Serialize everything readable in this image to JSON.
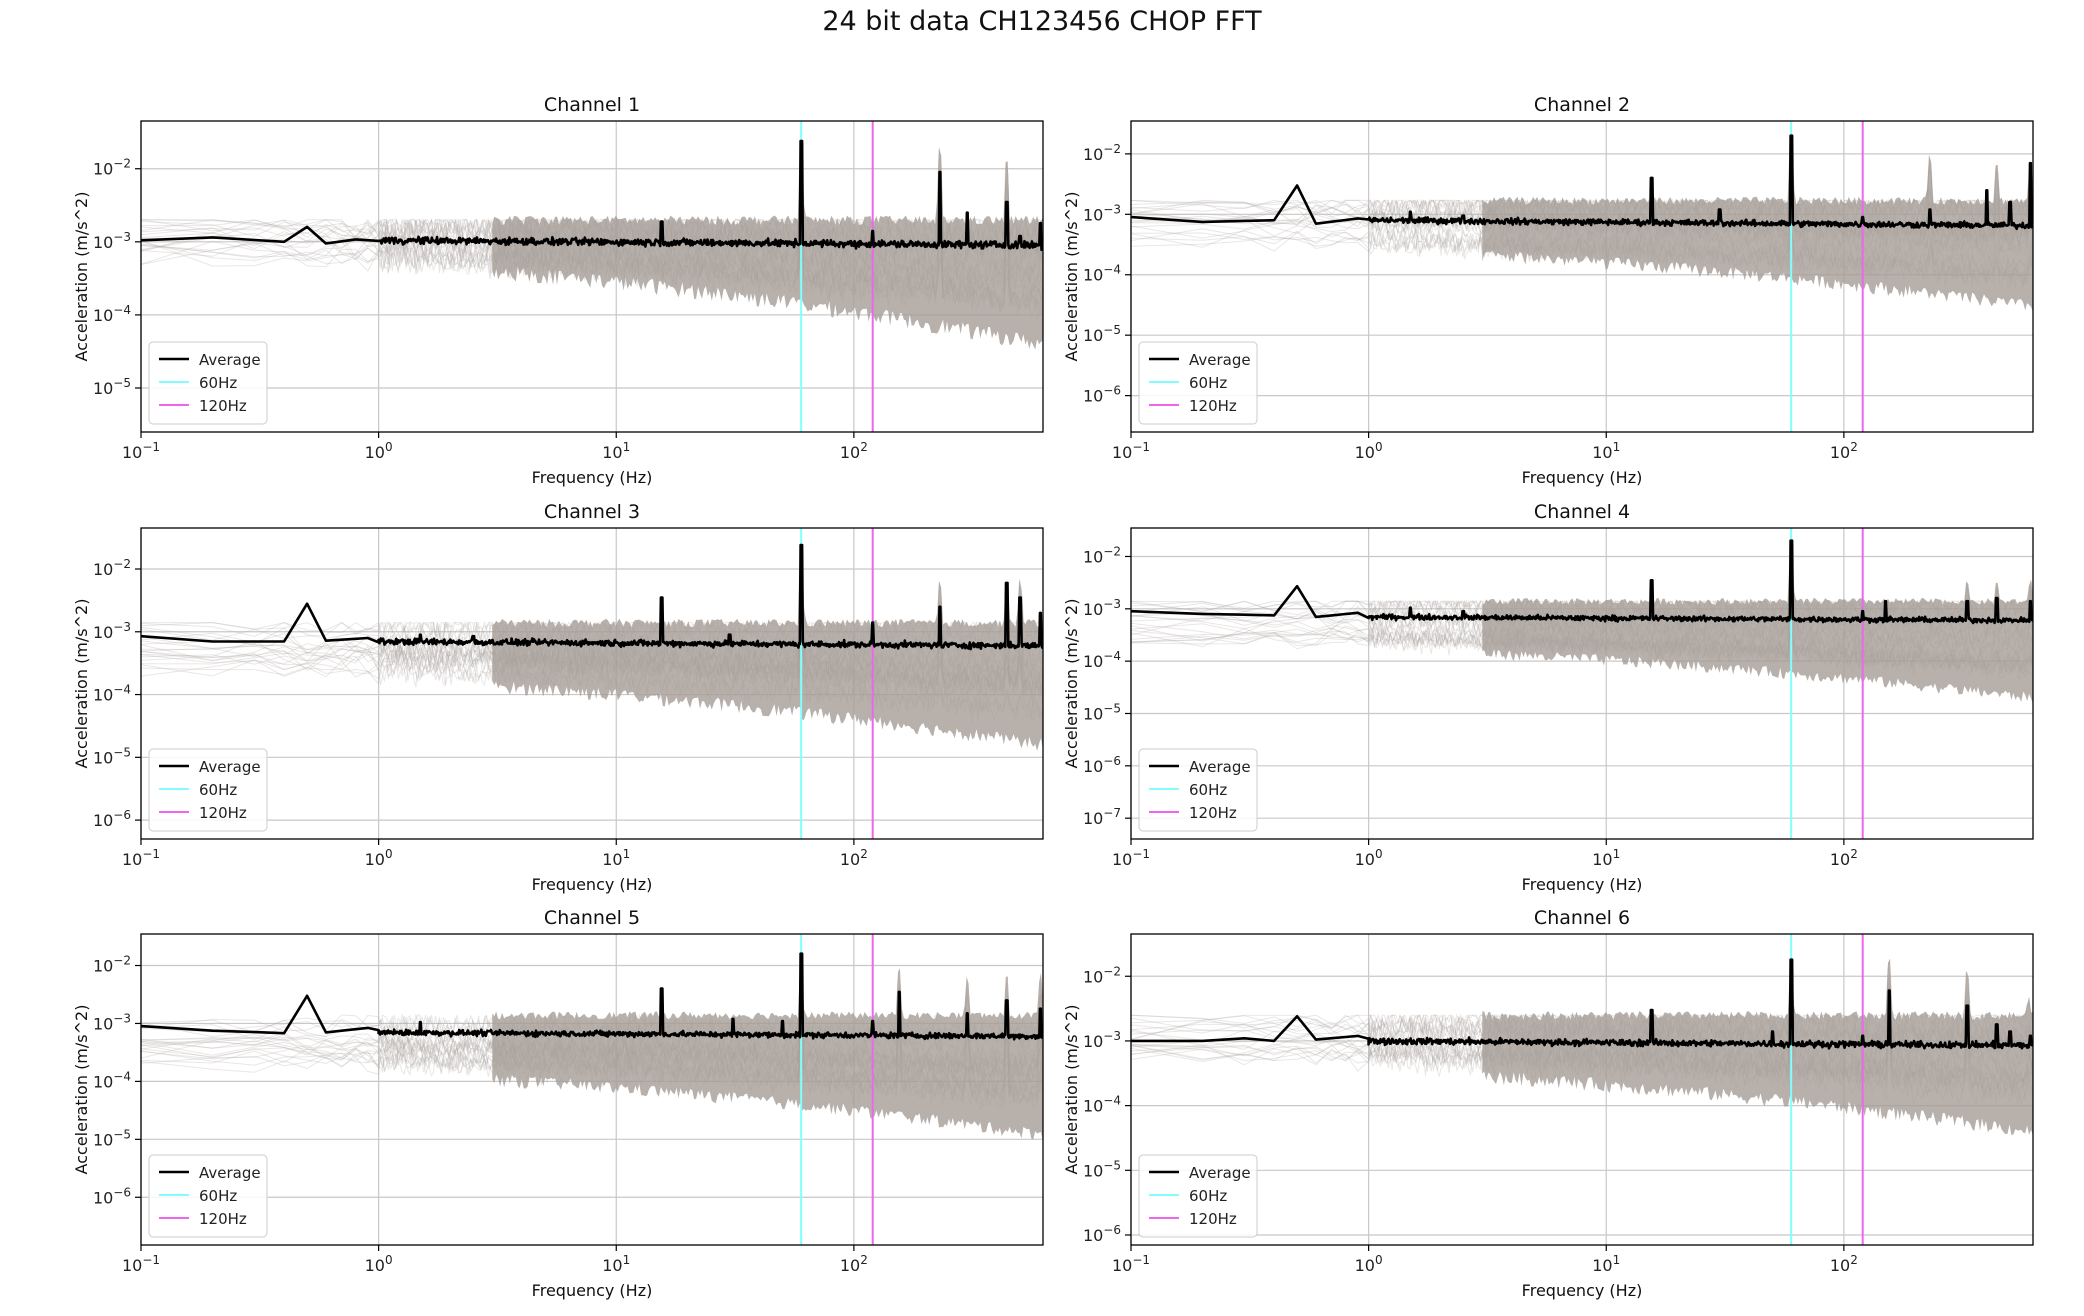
{
  "page": {
    "title": "24 bit data CH123456 CHOP FFT",
    "colors": {
      "average": "#000000",
      "band": "#a59c96",
      "band_faint": "#b0aaa6",
      "ref_60hz": "#7fffff",
      "ref_120hz": "#ee66ee",
      "grid": "#c8c8c8"
    }
  },
  "chart_data": [
    {
      "type": "line",
      "title": "Channel 1",
      "xlabel": "Frequency (Hz)",
      "ylabel": "Acceleration (m/s^2)",
      "xscale": "log",
      "yscale": "log",
      "xlim": [
        0.1,
        625
      ],
      "ylim": [
        2.5e-06,
        0.045
      ],
      "xticks": [
        "10^-1",
        "10^0",
        "10^1",
        "10^2"
      ],
      "yticks": [
        "10^-5",
        "10^-4",
        "10^-3",
        "10^-2"
      ],
      "grid": true,
      "legend_position": "lower-left",
      "legend": [
        "Average",
        "60Hz",
        "120Hz"
      ],
      "reference_lines": [
        {
          "name": "60Hz",
          "x": 60
        },
        {
          "name": "120Hz",
          "x": 120
        }
      ],
      "series": [
        {
          "name": "Average",
          "base": 0.00105,
          "dip": 0.0009,
          "points": [
            [
              0.1,
              0.00105
            ],
            [
              0.2,
              0.00115
            ],
            [
              0.4,
              0.001
            ],
            [
              0.5,
              0.0016
            ],
            [
              0.6,
              0.00095
            ],
            [
              0.8,
              0.00108
            ],
            [
              1.0,
              0.00103
            ],
            [
              15.5,
              0.0019
            ],
            [
              60,
              0.024
            ],
            [
              120,
              0.0014
            ],
            [
              230,
              0.009
            ],
            [
              300,
              0.0025
            ],
            [
              440,
              0.0035
            ],
            [
              500,
              0.0012
            ],
            [
              610,
              0.0018
            ]
          ]
        }
      ],
      "band": {
        "lower_at_start": 0.0003,
        "lower_at_end": 2e-05,
        "upper": 0.002,
        "peaks": [
          [
            60,
            0.03
          ],
          [
            230,
            0.025
          ],
          [
            440,
            0.018
          ]
        ]
      }
    },
    {
      "type": "line",
      "title": "Channel 2",
      "xlabel": "Frequency (Hz)",
      "ylabel": "Acceleration (m/s^2)",
      "xscale": "log",
      "yscale": "log",
      "xlim": [
        0.1,
        625
      ],
      "ylim": [
        2.5e-07,
        0.035
      ],
      "xticks": [
        "10^-1",
        "10^0",
        "10^1",
        "10^2"
      ],
      "yticks": [
        "10^-6",
        "10^-5",
        "10^-4",
        "10^-3",
        "10^-2"
      ],
      "grid": true,
      "legend_position": "lower-left",
      "legend": [
        "Average",
        "60Hz",
        "120Hz"
      ],
      "reference_lines": [
        {
          "name": "60Hz",
          "x": 60
        },
        {
          "name": "120Hz",
          "x": 120
        }
      ],
      "series": [
        {
          "name": "Average",
          "base": 0.0008,
          "dip": 0.00065,
          "points": [
            [
              0.1,
              0.0009
            ],
            [
              0.2,
              0.00075
            ],
            [
              0.4,
              0.0008
            ],
            [
              0.5,
              0.003
            ],
            [
              0.6,
              0.0007
            ],
            [
              1.5,
              0.0011
            ],
            [
              2.5,
              0.00095
            ],
            [
              15.5,
              0.004
            ],
            [
              30,
              0.0012
            ],
            [
              60,
              0.02
            ],
            [
              120,
              0.0009
            ],
            [
              230,
              0.0012
            ],
            [
              400,
              0.0025
            ],
            [
              500,
              0.0016
            ],
            [
              610,
              0.007
            ]
          ]
        }
      ],
      "band": {
        "lower_at_start": 0.00015,
        "lower_at_end": 1.5e-05,
        "upper": 0.0017,
        "peaks": [
          [
            60,
            0.025
          ],
          [
            230,
            0.012
          ],
          [
            440,
            0.009
          ],
          [
            610,
            0.009
          ]
        ]
      }
    },
    {
      "type": "line",
      "title": "Channel 3",
      "xlabel": "Frequency (Hz)",
      "ylabel": "Acceleration (m/s^2)",
      "xscale": "log",
      "yscale": "log",
      "xlim": [
        0.1,
        625
      ],
      "ylim": [
        5e-07,
        0.045
      ],
      "xticks": [
        "10^-1",
        "10^0",
        "10^1",
        "10^2"
      ],
      "yticks": [
        "10^-6",
        "10^-5",
        "10^-4",
        "10^-3",
        "10^-2"
      ],
      "grid": true,
      "legend_position": "lower-left",
      "legend": [
        "Average",
        "60Hz",
        "120Hz"
      ],
      "reference_lines": [
        {
          "name": "60Hz",
          "x": 60
        },
        {
          "name": "120Hz",
          "x": 120
        }
      ],
      "series": [
        {
          "name": "Average",
          "base": 0.0007,
          "dip": 0.0006,
          "points": [
            [
              0.1,
              0.00085
            ],
            [
              0.2,
              0.0007
            ],
            [
              0.4,
              0.0007
            ],
            [
              0.5,
              0.0028
            ],
            [
              0.6,
              0.00072
            ],
            [
              1.5,
              0.0009
            ],
            [
              2.5,
              0.00085
            ],
            [
              15.5,
              0.0035
            ],
            [
              30,
              0.0009
            ],
            [
              60,
              0.024
            ],
            [
              120,
              0.0014
            ],
            [
              230,
              0.0025
            ],
            [
              440,
              0.006
            ],
            [
              500,
              0.0035
            ],
            [
              610,
              0.002
            ]
          ]
        }
      ],
      "band": {
        "lower_at_start": 0.0001,
        "lower_at_end": 8e-06,
        "upper": 0.0014,
        "peaks": [
          [
            60,
            0.03
          ],
          [
            230,
            0.008
          ],
          [
            440,
            0.008
          ],
          [
            500,
            0.008
          ]
        ]
      }
    },
    {
      "type": "line",
      "title": "Channel 4",
      "xlabel": "Frequency (Hz)",
      "ylabel": "Acceleration (m/s^2)",
      "xscale": "log",
      "yscale": "log",
      "xlim": [
        0.1,
        625
      ],
      "ylim": [
        4e-08,
        0.035
      ],
      "xticks": [
        "10^-1",
        "10^0",
        "10^1",
        "10^2"
      ],
      "yticks": [
        "10^-7",
        "10^-6",
        "10^-5",
        "10^-4",
        "10^-3",
        "10^-2"
      ],
      "grid": true,
      "legend_position": "lower-left",
      "legend": [
        "Average",
        "60Hz",
        "120Hz"
      ],
      "reference_lines": [
        {
          "name": "60Hz",
          "x": 60
        },
        {
          "name": "120Hz",
          "x": 120
        }
      ],
      "series": [
        {
          "name": "Average",
          "base": 0.0007,
          "dip": 0.0006,
          "points": [
            [
              0.1,
              0.0009
            ],
            [
              0.2,
              0.0008
            ],
            [
              0.4,
              0.00075
            ],
            [
              0.5,
              0.0027
            ],
            [
              0.6,
              0.0007
            ],
            [
              1.5,
              0.00105
            ],
            [
              2.5,
              0.0009
            ],
            [
              15.5,
              0.0035
            ],
            [
              60,
              0.02
            ],
            [
              120,
              0.0009
            ],
            [
              150,
              0.0014
            ],
            [
              330,
              0.0014
            ],
            [
              440,
              0.0016
            ],
            [
              610,
              0.0014
            ]
          ]
        }
      ],
      "band": {
        "lower_at_start": 0.0001,
        "lower_at_end": 1e-05,
        "upper": 0.0014,
        "peaks": [
          [
            60,
            0.02
          ],
          [
            330,
            0.004
          ],
          [
            440,
            0.004
          ],
          [
            610,
            0.004
          ]
        ]
      }
    },
    {
      "type": "line",
      "title": "Channel 5",
      "xlabel": "Frequency (Hz)",
      "ylabel": "Acceleration (m/s^2)",
      "xscale": "log",
      "yscale": "log",
      "xlim": [
        0.1,
        625
      ],
      "ylim": [
        1.5e-07,
        0.035
      ],
      "xticks": [
        "10^-1",
        "10^0",
        "10^1",
        "10^2"
      ],
      "yticks": [
        "10^-6",
        "10^-5",
        "10^-4",
        "10^-3",
        "10^-2"
      ],
      "grid": true,
      "legend_position": "lower-left",
      "legend": [
        "Average",
        "60Hz",
        "120Hz"
      ],
      "reference_lines": [
        {
          "name": "60Hz",
          "x": 60
        },
        {
          "name": "120Hz",
          "x": 120
        }
      ],
      "series": [
        {
          "name": "Average",
          "base": 0.0007,
          "dip": 0.0006,
          "points": [
            [
              0.1,
              0.0009
            ],
            [
              0.2,
              0.00075
            ],
            [
              0.4,
              0.00068
            ],
            [
              0.5,
              0.003
            ],
            [
              0.6,
              0.0007
            ],
            [
              1.5,
              0.00105
            ],
            [
              15.5,
              0.004
            ],
            [
              31,
              0.0012
            ],
            [
              50,
              0.0011
            ],
            [
              60,
              0.016
            ],
            [
              120,
              0.0011
            ],
            [
              155,
              0.0035
            ],
            [
              300,
              0.0015
            ],
            [
              440,
              0.0025
            ],
            [
              610,
              0.0018
            ]
          ]
        }
      ],
      "band": {
        "lower_at_start": 8e-05,
        "lower_at_end": 6e-06,
        "upper": 0.0014,
        "peaks": [
          [
            60,
            0.016
          ],
          [
            155,
            0.012
          ],
          [
            300,
            0.008
          ],
          [
            440,
            0.009
          ],
          [
            610,
            0.009
          ]
        ]
      }
    },
    {
      "type": "line",
      "title": "Channel 6",
      "xlabel": "Frequency (Hz)",
      "ylabel": "Acceleration (m/s^2)",
      "xscale": "log",
      "yscale": "log",
      "xlim": [
        0.1,
        625
      ],
      "ylim": [
        7e-07,
        0.045
      ],
      "xticks": [
        "10^-1",
        "10^0",
        "10^1",
        "10^2"
      ],
      "yticks": [
        "10^-6",
        "10^-5",
        "10^-4",
        "10^-3",
        "10^-2"
      ],
      "grid": true,
      "legend_position": "lower-left",
      "legend": [
        "Average",
        "60Hz",
        "120Hz"
      ],
      "reference_lines": [
        {
          "name": "60Hz",
          "x": 60
        },
        {
          "name": "120Hz",
          "x": 120
        }
      ],
      "series": [
        {
          "name": "Average",
          "base": 0.001,
          "dip": 0.00085,
          "points": [
            [
              0.1,
              0.001
            ],
            [
              0.2,
              0.001
            ],
            [
              0.3,
              0.0011
            ],
            [
              0.4,
              0.001
            ],
            [
              0.5,
              0.0024
            ],
            [
              0.6,
              0.00105
            ],
            [
              15.5,
              0.003
            ],
            [
              50,
              0.0014
            ],
            [
              60,
              0.018
            ],
            [
              120,
              0.0012
            ],
            [
              155,
              0.006
            ],
            [
              330,
              0.0035
            ],
            [
              440,
              0.0018
            ],
            [
              500,
              0.0014
            ],
            [
              610,
              0.0012
            ]
          ]
        }
      ],
      "band": {
        "lower_at_start": 0.0002,
        "lower_at_end": 2e-05,
        "upper": 0.0025,
        "peaks": [
          [
            60,
            0.02
          ],
          [
            155,
            0.025
          ],
          [
            330,
            0.015
          ],
          [
            600,
            0.005
          ]
        ]
      }
    }
  ]
}
